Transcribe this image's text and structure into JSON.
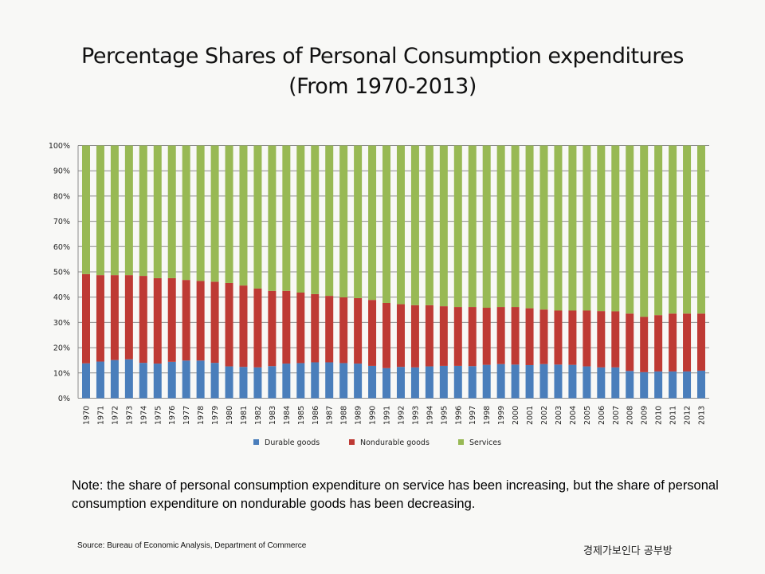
{
  "chart_data": {
    "type": "bar",
    "stacked": true,
    "title": "Percentage Shares of Personal Consumption expenditures",
    "subtitle": "(From 1970-2013)",
    "xlabel": "",
    "ylabel": "",
    "ylim": [
      0,
      100
    ],
    "yticks": [
      "0%",
      "10%",
      "20%",
      "30%",
      "40%",
      "50%",
      "60%",
      "70%",
      "80%",
      "90%",
      "100%"
    ],
    "grid": true,
    "legend_position": "bottom",
    "categories": [
      "1970",
      "1971",
      "1972",
      "1973",
      "1974",
      "1975",
      "1976",
      "1977",
      "1978",
      "1979",
      "1980",
      "1981",
      "1982",
      "1983",
      "1984",
      "1985",
      "1986",
      "1987",
      "1988",
      "1989",
      "1990",
      "1991",
      "1992",
      "1993",
      "1994",
      "1995",
      "1996",
      "1997",
      "1998",
      "1999",
      "2000",
      "2001",
      "2002",
      "2003",
      "2004",
      "2005",
      "2006",
      "2007",
      "2008",
      "2009",
      "2010",
      "2011",
      "2012",
      "2013"
    ],
    "series": [
      {
        "name": "Durable goods",
        "color": "#4a7ebb",
        "values": [
          13.8,
          14.5,
          15.1,
          15.4,
          14.0,
          13.7,
          14.4,
          14.9,
          14.9,
          14.0,
          12.6,
          12.4,
          12.2,
          12.7,
          13.7,
          13.9,
          14.2,
          14.2,
          13.9,
          13.7,
          12.8,
          11.9,
          12.4,
          12.2,
          12.6,
          12.8,
          12.8,
          12.7,
          13.2,
          13.5,
          13.3,
          13.1,
          13.5,
          13.3,
          13.2,
          12.6,
          12.2,
          12.2,
          10.8,
          10.3,
          10.6,
          10.6,
          10.6,
          10.9
        ]
      },
      {
        "name": "Nondurable goods",
        "color": "#be3a34",
        "values": [
          35.3,
          34.2,
          33.6,
          33.3,
          34.4,
          33.8,
          33.1,
          31.9,
          31.5,
          32.1,
          33.0,
          32.2,
          31.2,
          29.8,
          28.8,
          27.9,
          27.0,
          26.3,
          26.0,
          25.9,
          26.1,
          25.8,
          24.8,
          24.6,
          24.2,
          23.6,
          23.3,
          23.4,
          22.6,
          22.6,
          22.8,
          22.5,
          21.6,
          21.4,
          21.5,
          22.1,
          22.3,
          22.2,
          22.7,
          21.9,
          22.3,
          22.9,
          22.9,
          22.6
        ]
      },
      {
        "name": "Services",
        "color": "#98b954",
        "values": [
          50.9,
          51.3,
          51.3,
          51.3,
          51.6,
          52.5,
          52.5,
          53.2,
          53.6,
          53.9,
          54.4,
          55.4,
          56.6,
          57.5,
          57.5,
          58.2,
          58.8,
          59.5,
          60.1,
          60.4,
          61.1,
          62.3,
          62.8,
          63.2,
          63.2,
          63.6,
          63.9,
          63.9,
          64.2,
          63.9,
          63.9,
          64.4,
          64.9,
          65.3,
          65.3,
          65.3,
          65.5,
          65.6,
          66.5,
          67.8,
          67.1,
          66.5,
          66.5,
          66.5
        ]
      }
    ]
  },
  "note": "Note: the share of  personal consumption expenditure on service has been increasing, but the share of personal consumption expenditure on nondurable goods has been decreasing.",
  "source": "Source: Bureau of Economic Analysis, Department of Commerce",
  "brand": "경제가보인다 공부방"
}
